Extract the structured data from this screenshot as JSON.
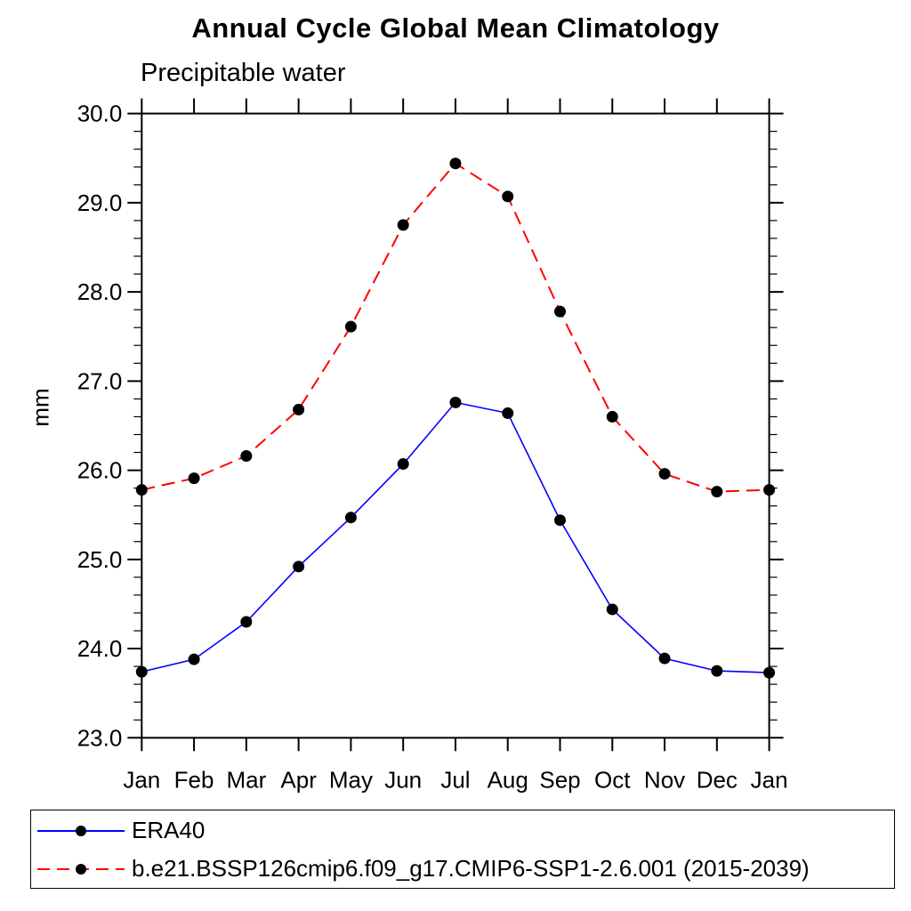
{
  "title": "Annual Cycle Global Mean Climatology",
  "subtitle": "Precipitable water",
  "ylabel": "mm",
  "chart_data": {
    "type": "line",
    "x_categories": [
      "Jan",
      "Feb",
      "Mar",
      "Apr",
      "May",
      "Jun",
      "Jul",
      "Aug",
      "Sep",
      "Oct",
      "Nov",
      "Dec",
      "Jan"
    ],
    "series": [
      {
        "name": "ERA40",
        "color": "#0000ff",
        "line_style": "solid",
        "marker": "filled-circle",
        "marker_color": "#000000",
        "values": [
          23.74,
          23.88,
          24.3,
          24.92,
          25.47,
          26.07,
          26.76,
          26.64,
          25.44,
          24.44,
          23.89,
          23.75,
          23.73
        ]
      },
      {
        "name": "b.e21.BSSP126cmip6.f09_g17.CMIP6-SSP1-2.6.001 (2015-2039)",
        "color": "#ff0000",
        "line_style": "dashed",
        "marker": "filled-circle",
        "marker_color": "#000000",
        "values": [
          25.78,
          25.91,
          26.16,
          26.68,
          27.61,
          28.75,
          29.44,
          29.07,
          27.78,
          26.6,
          25.96,
          25.76,
          25.78
        ]
      }
    ],
    "ylim": [
      23.0,
      30.0
    ],
    "y_major_tick_values": [
      23,
      24,
      25,
      26,
      27,
      28,
      29,
      30
    ],
    "y_major_tick_labels": [
      "23.0",
      "24.0",
      "25.0",
      "26.0",
      "27.0",
      "28.0",
      "29.0",
      "30.0"
    ],
    "y_minor_step": 0.2,
    "grid": "off",
    "legend_position": "bottom-left-box"
  }
}
